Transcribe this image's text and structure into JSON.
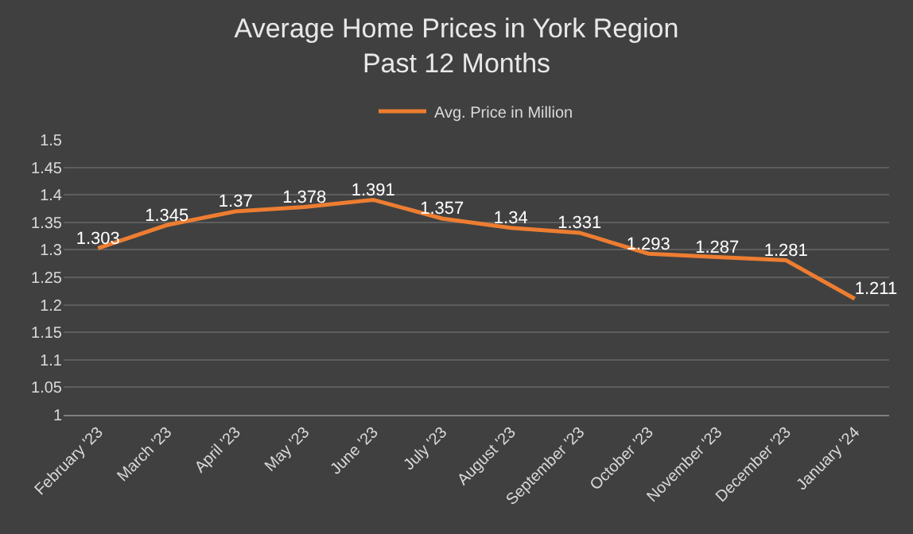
{
  "chart_data": {
    "type": "line",
    "title": "Average Home Prices in York Region\nPast 12 Months",
    "categories": [
      "February '23",
      "March '23",
      "April '23",
      "May '23",
      "June '23",
      "July '23",
      "August '23",
      "September '23",
      "October '23",
      "November '23",
      "December '23",
      "January '24"
    ],
    "series": [
      {
        "name": "Avg. Price in Million",
        "color": "#ed7d31",
        "values": [
          1.303,
          1.345,
          1.37,
          1.378,
          1.391,
          1.357,
          1.34,
          1.331,
          1.293,
          1.287,
          1.281,
          1.211
        ]
      }
    ],
    "ylim": [
      1,
      1.5
    ],
    "yticks": [
      1,
      1.05,
      1.1,
      1.15,
      1.2,
      1.25,
      1.3,
      1.35,
      1.4,
      1.45,
      1.5
    ],
    "grid": "y",
    "legend": "top",
    "data_labels": true,
    "marker": "none",
    "line_style": "solid"
  }
}
